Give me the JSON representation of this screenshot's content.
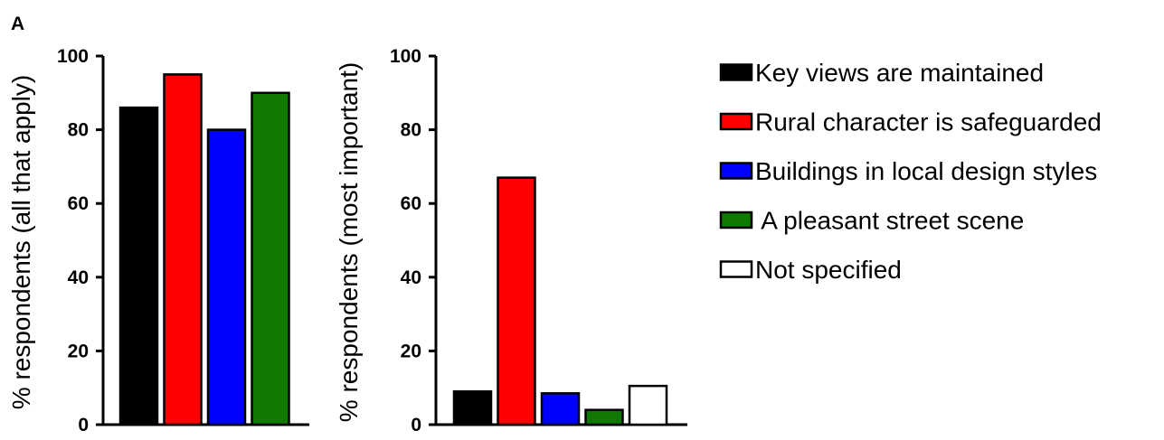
{
  "panel_label": "A",
  "chart_data": [
    {
      "type": "bar",
      "ylabel": "% respondents (all that apply)",
      "ylim": [
        0,
        100
      ],
      "yticks": [
        0,
        20,
        40,
        60,
        80,
        100
      ],
      "categories": [
        "Key views are maintained",
        "Rural character is safeguarded",
        "Buildings in local design styles",
        "A pleasant street scene"
      ],
      "values": [
        86,
        95,
        80,
        90
      ],
      "colors": [
        "#000000",
        "#ff0000",
        "#0000ff",
        "#107a00"
      ]
    },
    {
      "type": "bar",
      "ylabel": "% respondents (most important)",
      "ylim": [
        0,
        100
      ],
      "yticks": [
        0,
        20,
        40,
        60,
        80,
        100
      ],
      "categories": [
        "Key views are maintained",
        "Rural character is safeguarded",
        "Buildings in local design styles",
        "A pleasant street scene",
        "Not specified"
      ],
      "values": [
        9,
        67,
        8.5,
        4,
        10.5
      ],
      "colors": [
        "#000000",
        "#ff0000",
        "#0000ff",
        "#107a00",
        "#ffffff"
      ]
    }
  ],
  "legend": [
    {
      "label": "Key views are maintained",
      "color": "#000000"
    },
    {
      "label": "Rural character is safeguarded",
      "color": "#ff0000"
    },
    {
      "label": "Buildings in local design styles",
      "color": "#0000ff"
    },
    {
      "label": " A pleasant street scene",
      "color": "#107a00"
    },
    {
      "label": "Not specified",
      "color": "#ffffff"
    }
  ]
}
